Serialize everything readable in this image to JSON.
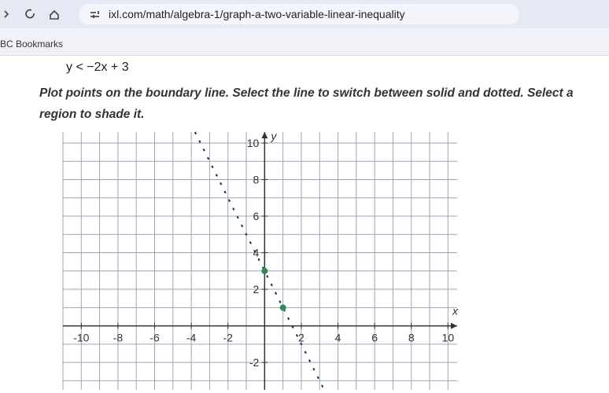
{
  "browser": {
    "url": "ixl.com/math/algebra-1/graph-a-two-variable-linear-inequality",
    "bookmarks": "BC Bookmarks"
  },
  "problem": {
    "inequality": "y < −2x + 3",
    "instructions_line1": "Plot points on the boundary line. Select the line to switch between solid and dotted. Select a",
    "instructions_line2": "region to shade it."
  },
  "graph": {
    "x_label": "x",
    "y_label": "y",
    "xlim": [
      -11,
      10.5
    ],
    "ylim": [
      -3.5,
      10.6
    ],
    "xticks": [
      -10,
      -8,
      -6,
      -4,
      -2,
      2,
      4,
      6,
      8,
      10
    ],
    "yticks": [
      10,
      8,
      6,
      4,
      2,
      -2
    ],
    "points": [
      {
        "x": 0,
        "y": 3
      },
      {
        "x": 1,
        "y": 1
      }
    ]
  }
}
